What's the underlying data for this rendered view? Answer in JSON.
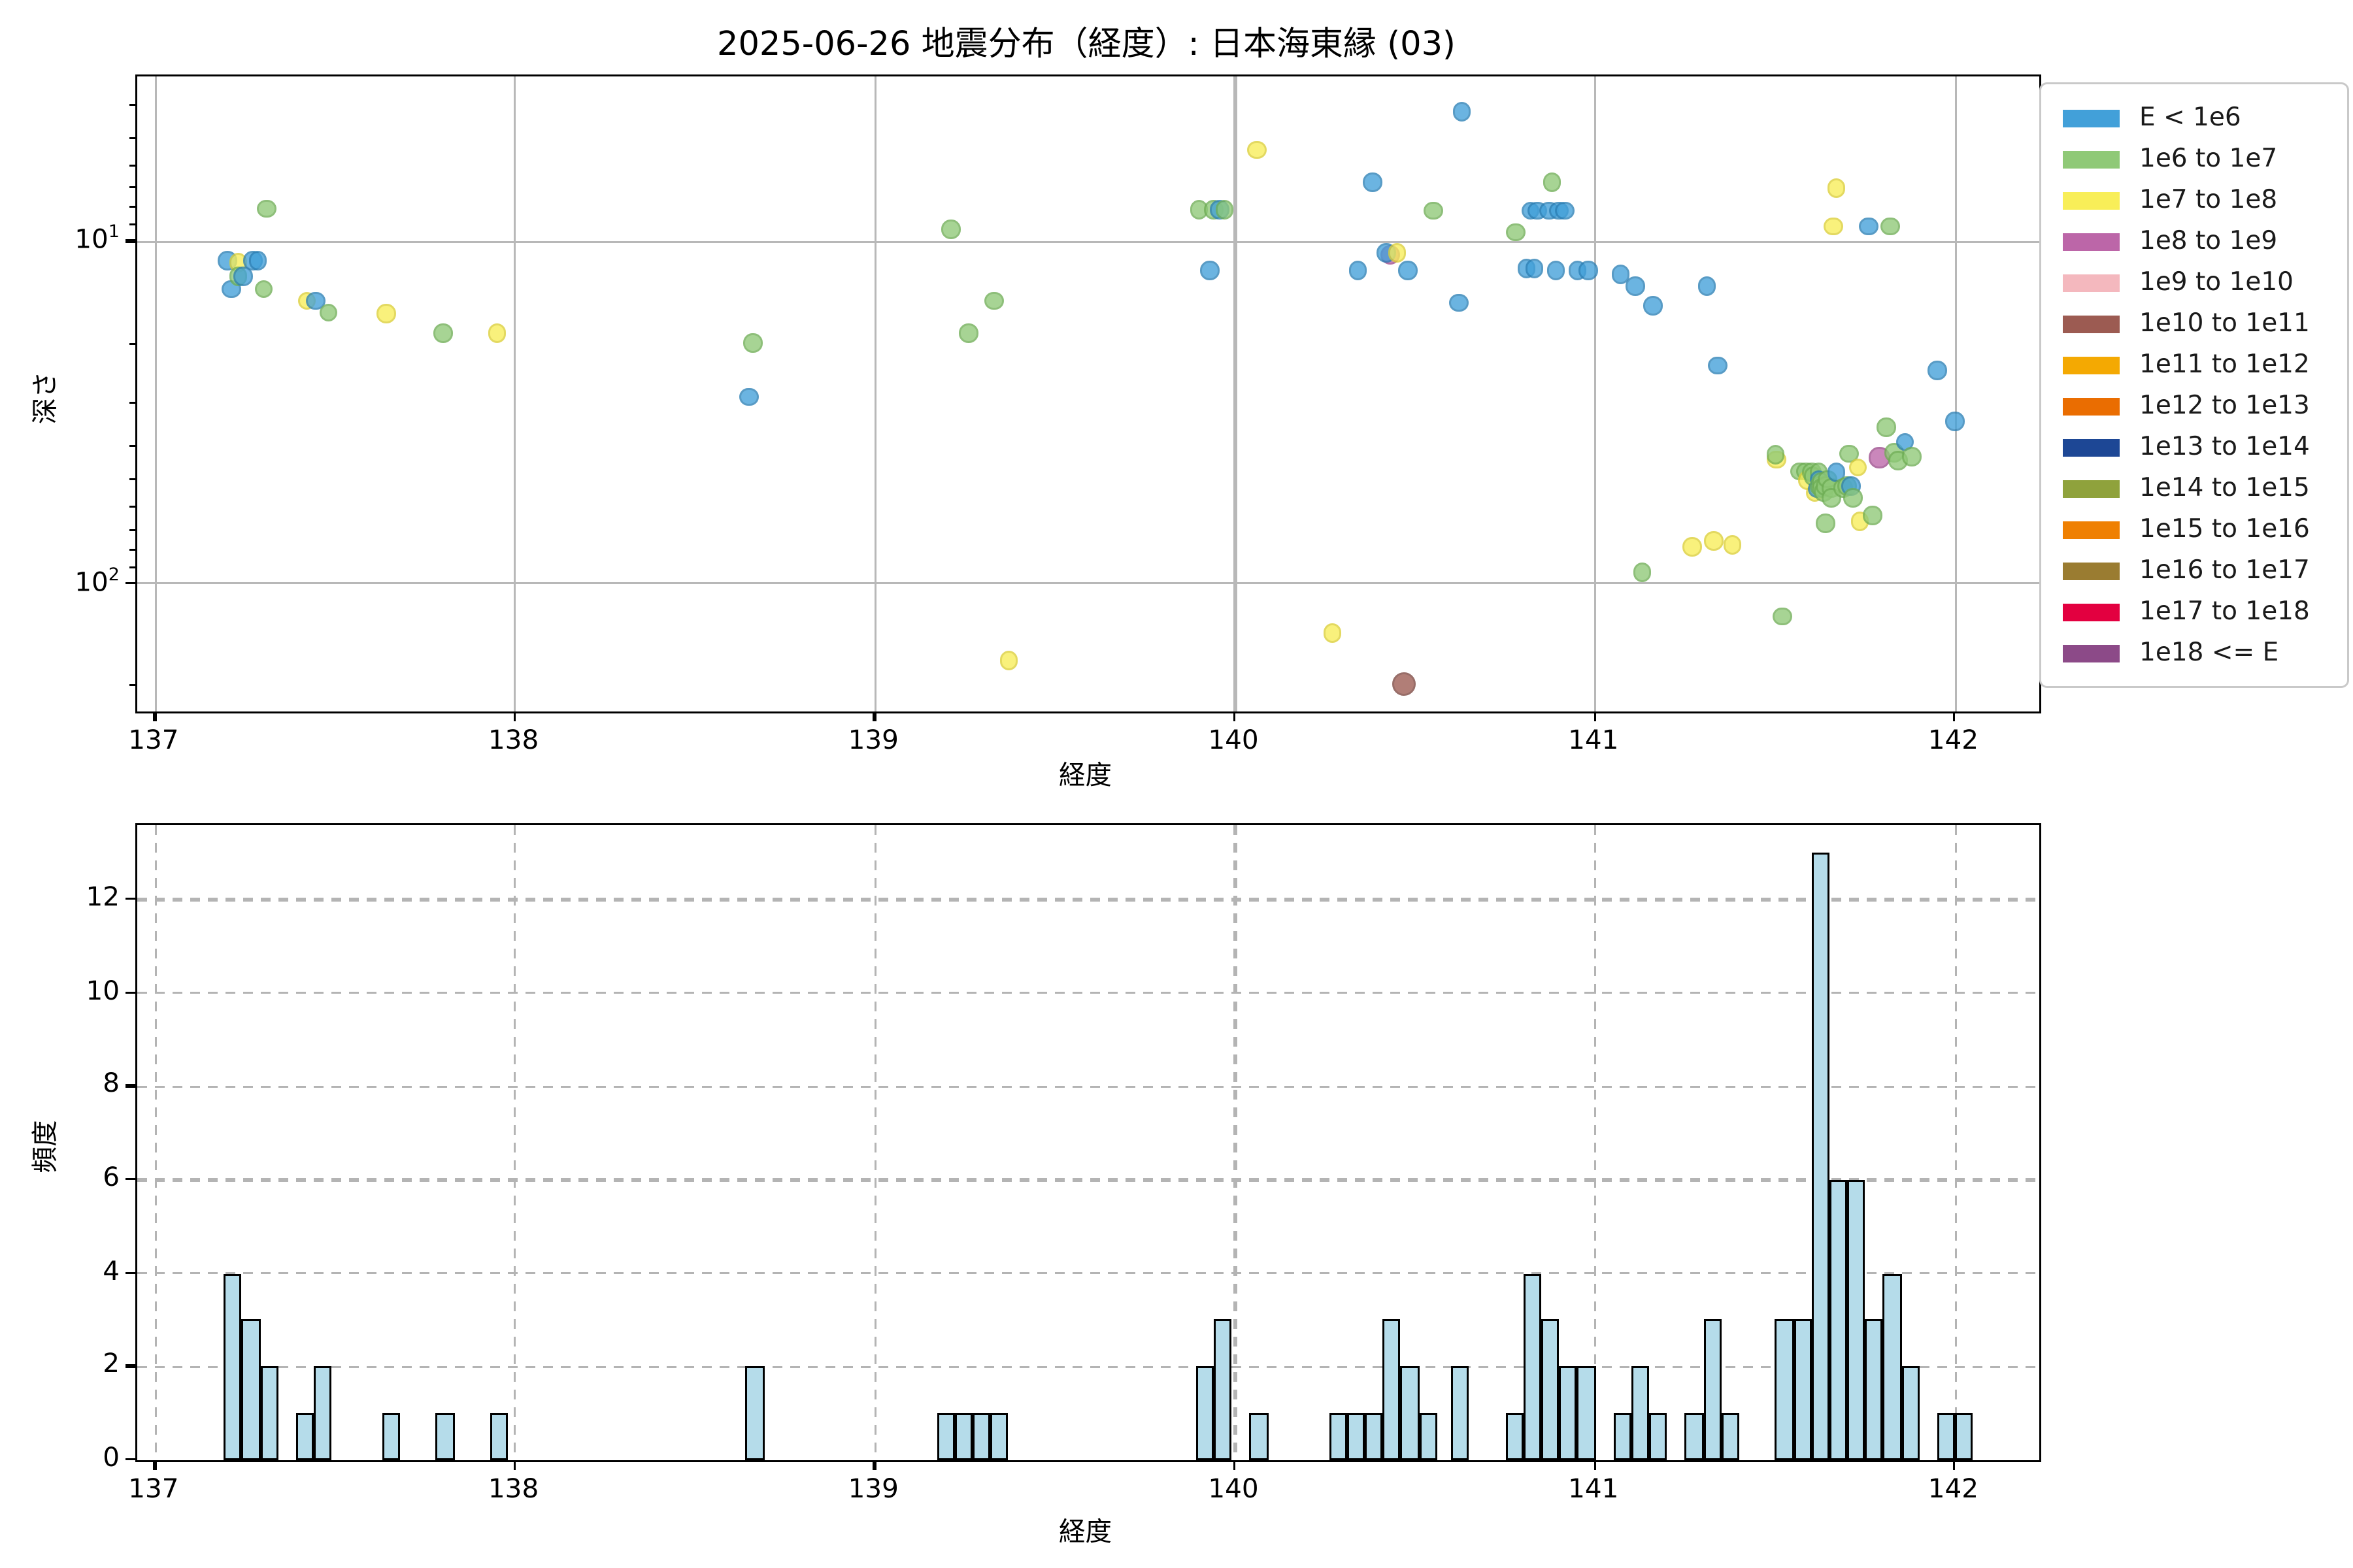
{
  "title": "2025-06-26 地震分布（経度）: 日本海東縁 (03)",
  "legend": {
    "entries": [
      {
        "label": "E < 1e6",
        "color": "#42A0D9",
        "edge": "#2A7FB5"
      },
      {
        "label": "1e6 to 1e7",
        "color": "#8FC977",
        "edge": "#6FAE55"
      },
      {
        "label": "1e7 to 1e8",
        "color": "#F8EE58",
        "edge": "#DCCF35"
      },
      {
        "label": "1e8 to 1e9",
        "color": "#BC66A8",
        "edge": "#9C4A8B"
      },
      {
        "label": "1e9 to 1e10",
        "color": "#F4B8BE",
        "edge": "#D99AA2"
      },
      {
        "label": "1e10 to 1e11",
        "color": "#9C5B52",
        "edge": "#7C463F"
      },
      {
        "label": "1e11 to 1e12",
        "color": "#F4A902",
        "edge": "#C68902"
      },
      {
        "label": "1e12 to 1e13",
        "color": "#EA6D01",
        "edge": "#C05801"
      },
      {
        "label": "1e13 to 1e14",
        "color": "#1D4795",
        "edge": "#143472"
      },
      {
        "label": "1e14 to 1e15",
        "color": "#8FA23C",
        "edge": "#72822F"
      },
      {
        "label": "1e15 to 1e16",
        "color": "#EF8002",
        "edge": "#C56802"
      },
      {
        "label": "1e16 to 1e17",
        "color": "#9A7C31",
        "edge": "#7B6227"
      },
      {
        "label": "1e17 to 1e18",
        "color": "#E30040",
        "edge": "#B50033"
      },
      {
        "label": "1e18 <= E",
        "color": "#8C4A88",
        "edge": "#6F3A6C"
      }
    ]
  },
  "chart_data": [
    {
      "type": "scatter",
      "xlabel": "経度",
      "ylabel": "深さ",
      "x_ticks": [
        137,
        138,
        139,
        140,
        141,
        142
      ],
      "y_ticks": [
        "10^1",
        "10^2"
      ],
      "y_minor_depths": [
        4,
        5,
        6,
        7,
        8,
        9,
        20,
        30,
        40,
        50,
        60,
        70,
        80,
        90,
        200
      ],
      "xlim": [
        136.95,
        142.23
      ],
      "depth_lim": [
        3.3,
        236
      ],
      "y_scale": "log-inverted",
      "grid": "solid",
      "points": [
        [
          137.2,
          11.4,
          0
        ],
        [
          137.21,
          13.8,
          0
        ],
        [
          137.23,
          11.5,
          2
        ],
        [
          137.23,
          12.6,
          1
        ],
        [
          137.245,
          12.6,
          0
        ],
        [
          137.27,
          11.4,
          0
        ],
        [
          137.285,
          11.4,
          0
        ],
        [
          137.3,
          13.8,
          1
        ],
        [
          137.31,
          8.0,
          1
        ],
        [
          137.42,
          14.9,
          2
        ],
        [
          137.445,
          14.9,
          0
        ],
        [
          137.48,
          16.1,
          1
        ],
        [
          137.64,
          16.2,
          2
        ],
        [
          137.8,
          18.5,
          1
        ],
        [
          137.95,
          18.5,
          2
        ],
        [
          138.65,
          28.4,
          0
        ],
        [
          138.66,
          19.8,
          1
        ],
        [
          139.21,
          9.2,
          1
        ],
        [
          139.26,
          18.5,
          1
        ],
        [
          139.33,
          14.9,
          1
        ],
        [
          139.37,
          168,
          2
        ],
        [
          139.9,
          8.05,
          1
        ],
        [
          139.93,
          12.1,
          0
        ],
        [
          139.94,
          8.05,
          1
        ],
        [
          139.955,
          8.05,
          0
        ],
        [
          139.97,
          8.05,
          1
        ],
        [
          140.06,
          5.4,
          2
        ],
        [
          140.27,
          140,
          2
        ],
        [
          140.34,
          12.1,
          0
        ],
        [
          140.38,
          6.7,
          0
        ],
        [
          140.43,
          10.9,
          3
        ],
        [
          140.42,
          10.8,
          0
        ],
        [
          140.45,
          10.8,
          2
        ],
        [
          140.47,
          196,
          5
        ],
        [
          140.48,
          12.1,
          0
        ],
        [
          140.55,
          8.1,
          1
        ],
        [
          140.62,
          15.1,
          0
        ],
        [
          140.63,
          4.15,
          0
        ],
        [
          140.78,
          9.4,
          1
        ],
        [
          140.81,
          12.0,
          0
        ],
        [
          140.82,
          8.1,
          0
        ],
        [
          140.83,
          12.0,
          0
        ],
        [
          140.84,
          8.1,
          0
        ],
        [
          140.87,
          8.1,
          0
        ],
        [
          140.88,
          6.7,
          1
        ],
        [
          140.89,
          12.1,
          0
        ],
        [
          140.9,
          8.1,
          0
        ],
        [
          140.915,
          8.1,
          0
        ],
        [
          140.95,
          12.1,
          0
        ],
        [
          140.98,
          12.1,
          0
        ],
        [
          141.07,
          12.5,
          0
        ],
        [
          141.11,
          13.5,
          0
        ],
        [
          141.13,
          93,
          1
        ],
        [
          141.16,
          15.4,
          0
        ],
        [
          141.27,
          78,
          2
        ],
        [
          141.31,
          13.5,
          0
        ],
        [
          141.33,
          75,
          2
        ],
        [
          141.34,
          23,
          0
        ],
        [
          141.38,
          77,
          2
        ],
        [
          141.505,
          43.5,
          2
        ],
        [
          141.5,
          42,
          1
        ],
        [
          141.52,
          125,
          1
        ],
        [
          141.57,
          47,
          1
        ],
        [
          141.585,
          47,
          1
        ],
        [
          141.59,
          50,
          2
        ],
        [
          141.6,
          47.5,
          1
        ],
        [
          141.605,
          48.5,
          1
        ],
        [
          141.61,
          54.5,
          2
        ],
        [
          141.615,
          53,
          0
        ],
        [
          141.62,
          47.5,
          1
        ],
        [
          141.62,
          49.5,
          0
        ],
        [
          141.62,
          52,
          1
        ],
        [
          141.625,
          50.5,
          1
        ],
        [
          141.63,
          52.5,
          1
        ],
        [
          141.635,
          54,
          1
        ],
        [
          141.64,
          52,
          1
        ],
        [
          141.64,
          66.5,
          1
        ],
        [
          141.645,
          49.5,
          1
        ],
        [
          141.655,
          52.5,
          1
        ],
        [
          141.655,
          56,
          1
        ],
        [
          141.66,
          9.0,
          2
        ],
        [
          141.67,
          7.0,
          2
        ],
        [
          141.67,
          47.5,
          0
        ],
        [
          141.69,
          52.7,
          1
        ],
        [
          141.7,
          52.1,
          1
        ],
        [
          141.705,
          41.8,
          1
        ],
        [
          141.71,
          52.1,
          0
        ],
        [
          141.715,
          56.3,
          1
        ],
        [
          141.73,
          45.8,
          2
        ],
        [
          141.735,
          66,
          2
        ],
        [
          141.76,
          9.0,
          0
        ],
        [
          141.77,
          63.5,
          1
        ],
        [
          141.79,
          42.8,
          3
        ],
        [
          141.81,
          34.8,
          1
        ],
        [
          141.82,
          9.0,
          1
        ],
        [
          141.83,
          41.5,
          1
        ],
        [
          141.84,
          43.7,
          1
        ],
        [
          141.86,
          38.6,
          0
        ],
        [
          141.88,
          42.5,
          1
        ],
        [
          141.95,
          23.8,
          0
        ],
        [
          142.0,
          33.7,
          0
        ]
      ]
    },
    {
      "type": "bar",
      "xlabel": "経度",
      "ylabel": "頻度",
      "x_ticks": [
        137,
        138,
        139,
        140,
        141,
        142
      ],
      "y_ticks": [
        0,
        2,
        4,
        6,
        8,
        10,
        12
      ],
      "xlim": [
        136.95,
        142.23
      ],
      "ylim": [
        0,
        13.6
      ],
      "grid": "dashed",
      "bar_color": "#b5dcea",
      "bin_width": 0.05,
      "bars": [
        [
          137.19,
          4
        ],
        [
          137.24,
          3
        ],
        [
          137.29,
          2
        ],
        [
          137.39,
          1
        ],
        [
          137.44,
          2
        ],
        [
          137.63,
          1
        ],
        [
          137.78,
          1
        ],
        [
          137.93,
          1
        ],
        [
          138.64,
          2
        ],
        [
          139.17,
          1
        ],
        [
          139.22,
          1
        ],
        [
          139.27,
          1
        ],
        [
          139.32,
          1
        ],
        [
          139.89,
          2
        ],
        [
          139.94,
          3
        ],
        [
          140.04,
          1
        ],
        [
          140.26,
          1
        ],
        [
          140.31,
          1
        ],
        [
          140.36,
          1
        ],
        [
          140.41,
          3
        ],
        [
          140.46,
          2
        ],
        [
          140.51,
          1
        ],
        [
          140.6,
          2
        ],
        [
          140.75,
          1
        ],
        [
          140.8,
          4
        ],
        [
          140.85,
          3
        ],
        [
          140.9,
          2
        ],
        [
          140.95,
          2
        ],
        [
          141.05,
          1
        ],
        [
          141.1,
          2
        ],
        [
          141.15,
          1
        ],
        [
          141.25,
          1
        ],
        [
          141.3,
          3
        ],
        [
          141.35,
          1
        ],
        [
          141.5,
          3
        ],
        [
          141.55,
          3
        ],
        [
          141.6,
          13
        ],
        [
          141.65,
          6
        ],
        [
          141.7,
          6
        ],
        [
          141.75,
          3
        ],
        [
          141.8,
          4
        ],
        [
          141.85,
          2
        ],
        [
          141.95,
          1
        ],
        [
          142.0,
          1
        ]
      ]
    }
  ]
}
